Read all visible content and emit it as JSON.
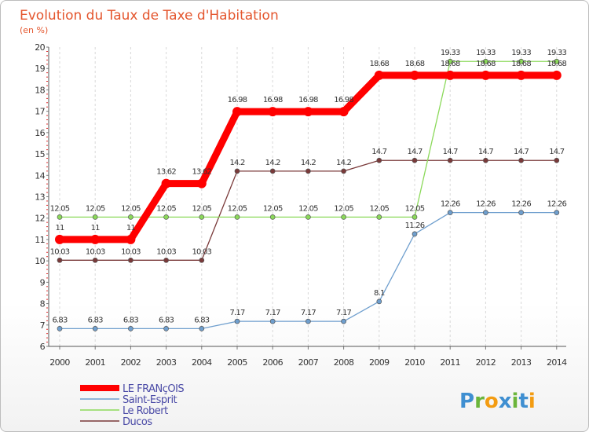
{
  "chart_data": {
    "type": "line",
    "title": "Evolution du Taux de Taxe d'Habitation",
    "subtitle": "(en %)",
    "x": [
      2000,
      2001,
      2002,
      2003,
      2004,
      2005,
      2006,
      2007,
      2008,
      2009,
      2010,
      2011,
      2012,
      2013,
      2014
    ],
    "xlabel": "",
    "ylabel": "",
    "ylim": [
      6,
      20
    ],
    "yticks": [
      6,
      7,
      8,
      9,
      10,
      11,
      12,
      13,
      14,
      15,
      16,
      17,
      18,
      19,
      20
    ],
    "grid": "vertical dashed",
    "legend_position": "bottom-left",
    "series": [
      {
        "name": "LE FRANçOIS",
        "color": "#ff0000",
        "values": [
          11,
          11,
          11,
          13.62,
          13.62,
          16.98,
          16.98,
          16.98,
          16.98,
          18.68,
          18.68,
          18.68,
          18.68,
          18.68,
          18.68
        ],
        "labels": [
          "11",
          "11",
          "11",
          "13.62",
          "13.62",
          "16.98",
          "16.98",
          "16.98",
          "16.98",
          "18.68",
          "18.68",
          "18.68",
          "18.68",
          "18.68",
          "18.68"
        ]
      },
      {
        "name": "Saint-Esprit",
        "color": "#6f9fce",
        "values": [
          6.83,
          6.83,
          6.83,
          6.83,
          6.83,
          7.17,
          7.17,
          7.17,
          7.17,
          8.1,
          11.26,
          12.26,
          12.26,
          12.26,
          12.26
        ],
        "labels": [
          "6.83",
          "6.83",
          "6.83",
          "6.83",
          "6.83",
          "7.17",
          "7.17",
          "7.17",
          "7.17",
          "8.1",
          "11.26",
          "12.26",
          "12.26",
          "12.26",
          "12.26"
        ]
      },
      {
        "name": "Le Robert",
        "color": "#8bd95a",
        "values": [
          12.05,
          12.05,
          12.05,
          12.05,
          12.05,
          12.05,
          12.05,
          12.05,
          12.05,
          12.05,
          12.05,
          19.33,
          19.33,
          19.33,
          19.33
        ],
        "labels": [
          "12.05",
          "12.05",
          "12.05",
          "12.05",
          "12.05",
          "12.05",
          "12.05",
          "12.05",
          "12.05",
          "12.05",
          "12.05",
          "19.33",
          "19.33",
          "19.33",
          "19.33"
        ]
      },
      {
        "name": "Ducos",
        "color": "#7a3a3a",
        "values": [
          10.03,
          10.03,
          10.03,
          10.03,
          10.03,
          14.2,
          14.2,
          14.2,
          14.2,
          14.7,
          14.7,
          14.7,
          14.7,
          14.7,
          14.7
        ],
        "labels": [
          "10.03",
          "10.03",
          "10.03",
          "10.03",
          "10.03",
          "14.2",
          "14.2",
          "14.2",
          "14.2",
          "14.7",
          "14.7",
          "14.7",
          "14.7",
          "14.7",
          "14.7"
        ]
      }
    ]
  },
  "logo": {
    "letters": [
      "P",
      "r",
      "o",
      "x",
      "i",
      "t",
      "i"
    ],
    "colors": [
      "#3f8fd1",
      "#6bb53b",
      "#f39c12",
      "#3f8fd1",
      "#6bb53b",
      "#3f8fd1",
      "#f39c12"
    ]
  }
}
